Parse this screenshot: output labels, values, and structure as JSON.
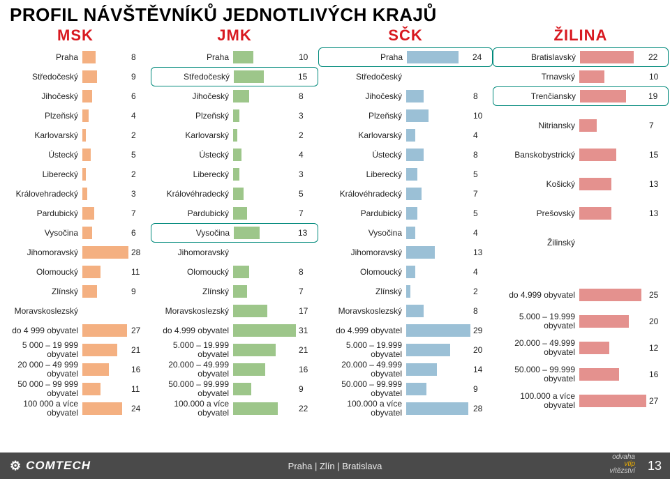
{
  "title": "PROFIL NÁVŠTĚVNÍKŮ JEDNOTLIVÝCH KRAJŮ",
  "footer": {
    "logo": "COMTECH",
    "cities": "Praha | Zlín | Bratislava",
    "slogan1": "odvaha",
    "slogan2": "vtip",
    "slogan3": "vítězství",
    "page": "13"
  },
  "columns": [
    {
      "key": "msk",
      "header": "MSK",
      "bar_color": "#f4b081",
      "max": 28,
      "rows": [
        {
          "label": "Praha",
          "value": 8
        },
        {
          "label": "Středočeský",
          "value": 9
        },
        {
          "label": "Jihočeský",
          "value": 6
        },
        {
          "label": "Plzeňský",
          "value": 4
        },
        {
          "label": "Karlovarský",
          "value": 2
        },
        {
          "label": "Ústecký",
          "value": 5
        },
        {
          "label": "Liberecký",
          "value": 2
        },
        {
          "label": "Královehradecký",
          "value": 3
        },
        {
          "label": "Pardubický",
          "value": 7
        },
        {
          "label": "Vysočina",
          "value": 6
        },
        {
          "label": "Jihomoravský",
          "value": 28
        },
        {
          "label": "Olomoucký",
          "value": 11
        },
        {
          "label": "Zlínský",
          "value": 9
        },
        {
          "label": "Moravskoslezský",
          "value": null
        },
        {
          "label": "do 4 999 obyvatel",
          "value": 27
        },
        {
          "label": "5 000 – 19 999 obyvatel",
          "value": 21
        },
        {
          "label": "20 000 – 49 999 obyvatel",
          "value": 16
        },
        {
          "label": "50 000 – 99 999 obyvatel",
          "value": 11
        },
        {
          "label": "100 000 a více obyvatel",
          "value": 24
        }
      ],
      "highlight_idx": []
    },
    {
      "key": "jmk",
      "header": "JMK",
      "bar_color": "#9dc68a",
      "max": 31,
      "rows": [
        {
          "label": "Praha",
          "value": 10
        },
        {
          "label": "Středočeský",
          "value": 15
        },
        {
          "label": "Jihočeský",
          "value": 8
        },
        {
          "label": "Plzeňský",
          "value": 3
        },
        {
          "label": "Karlovarský",
          "value": 2
        },
        {
          "label": "Ústecký",
          "value": 4
        },
        {
          "label": "Liberecký",
          "value": 3
        },
        {
          "label": "Královéhradecký",
          "value": 5
        },
        {
          "label": "Pardubický",
          "value": 7
        },
        {
          "label": "Vysočina",
          "value": 13
        },
        {
          "label": "Jihomoravský",
          "value": null
        },
        {
          "label": "Olomoucký",
          "value": 8
        },
        {
          "label": "Zlínský",
          "value": 7
        },
        {
          "label": "Moravskoslezský",
          "value": 17
        },
        {
          "label": "do 4.999 obyvatel",
          "value": 31
        },
        {
          "label": "5.000 – 19.999 obyvatel",
          "value": 21
        },
        {
          "label": "20.000 – 49.999 obyvatel",
          "value": 16
        },
        {
          "label": "50.000 – 99.999 obyvatel",
          "value": 9
        },
        {
          "label": "100.000 a více obyvatel",
          "value": 22
        }
      ],
      "highlight_idx": [
        1,
        9
      ]
    },
    {
      "key": "sck",
      "header": "SČK",
      "bar_color": "#9bc0d6",
      "max": 29,
      "rows": [
        {
          "label": "Praha",
          "value": 24
        },
        {
          "label": "Středočeský",
          "value": null
        },
        {
          "label": "Jihočeský",
          "value": 8
        },
        {
          "label": "Plzeňský",
          "value": 10
        },
        {
          "label": "Karlovarský",
          "value": 4
        },
        {
          "label": "Ústecký",
          "value": 8
        },
        {
          "label": "Liberecký",
          "value": 5
        },
        {
          "label": "Královéhradecký",
          "value": 7
        },
        {
          "label": "Pardubický",
          "value": 5
        },
        {
          "label": "Vysočina",
          "value": 4
        },
        {
          "label": "Jihomoravský",
          "value": 13
        },
        {
          "label": "Olomoucký",
          "value": 4
        },
        {
          "label": "Zlínský",
          "value": 2
        },
        {
          "label": "Moravskoslezský",
          "value": 8
        },
        {
          "label": "do 4.999 obyvatel",
          "value": 29
        },
        {
          "label": "5.000 – 19.999 obyvatel",
          "value": 20
        },
        {
          "label": "20.000 – 49.999 obyvatel",
          "value": 14
        },
        {
          "label": "50.000 – 99.999 obyvatel",
          "value": 9
        },
        {
          "label": "100.000 a více obyvatel",
          "value": 28
        }
      ],
      "highlight_idx": [
        0
      ]
    },
    {
      "key": "zil",
      "header": "ŽILINA",
      "bar_color": "#e4918e",
      "max": 27,
      "rows_top": [
        {
          "label": "Bratislavský",
          "value": 22
        },
        {
          "label": "Trnavský",
          "value": 10
        },
        {
          "label": "Trenčiansky",
          "value": 19
        },
        {
          "label": "Nitriansky",
          "value": 7
        },
        {
          "label": "Banskobystrický",
          "value": 15
        },
        {
          "label": "Košický",
          "value": 13
        },
        {
          "label": "Prešovský",
          "value": 13
        },
        {
          "label": "Žilinský",
          "value": null
        }
      ],
      "rows_bottom": [
        {
          "label": "do 4.999 obyvatel",
          "value": 25
        },
        {
          "label": "5.000 – 19.999 obyvatel",
          "value": 20
        },
        {
          "label": "20.000 – 49.999 obyvatel",
          "value": 12
        },
        {
          "label": "50.000 – 99.999 obyvatel",
          "value": 16
        },
        {
          "label": "100.000 a více obyvatel",
          "value": 27
        }
      ],
      "highlight_idx_top": [
        0,
        2
      ]
    }
  ]
}
